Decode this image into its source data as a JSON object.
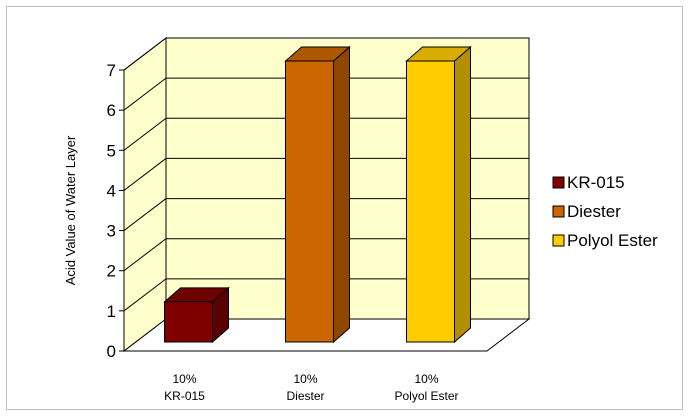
{
  "chart_data": {
    "type": "bar",
    "style": "3d-column",
    "ylabel": "Acid Value of Water Layer",
    "ylim": [
      0,
      7
    ],
    "yticks": [
      "0",
      "1",
      "2",
      "3",
      "4",
      "5",
      "6",
      "7"
    ],
    "grid": true,
    "categories": [
      [
        "10%",
        "KR-015"
      ],
      [
        "10%",
        "Diester"
      ],
      [
        "10%",
        "Polyol Ester"
      ]
    ],
    "values": [
      1.0,
      7.0,
      7.0
    ],
    "series": [
      {
        "name": "KR-015",
        "color": "#800000"
      },
      {
        "name": "Diester",
        "color": "#cc6600"
      },
      {
        "name": "Polyol Ester",
        "color": "#ffcc00"
      }
    ],
    "legend_position": "right",
    "wall_color": "#ffffcc"
  }
}
